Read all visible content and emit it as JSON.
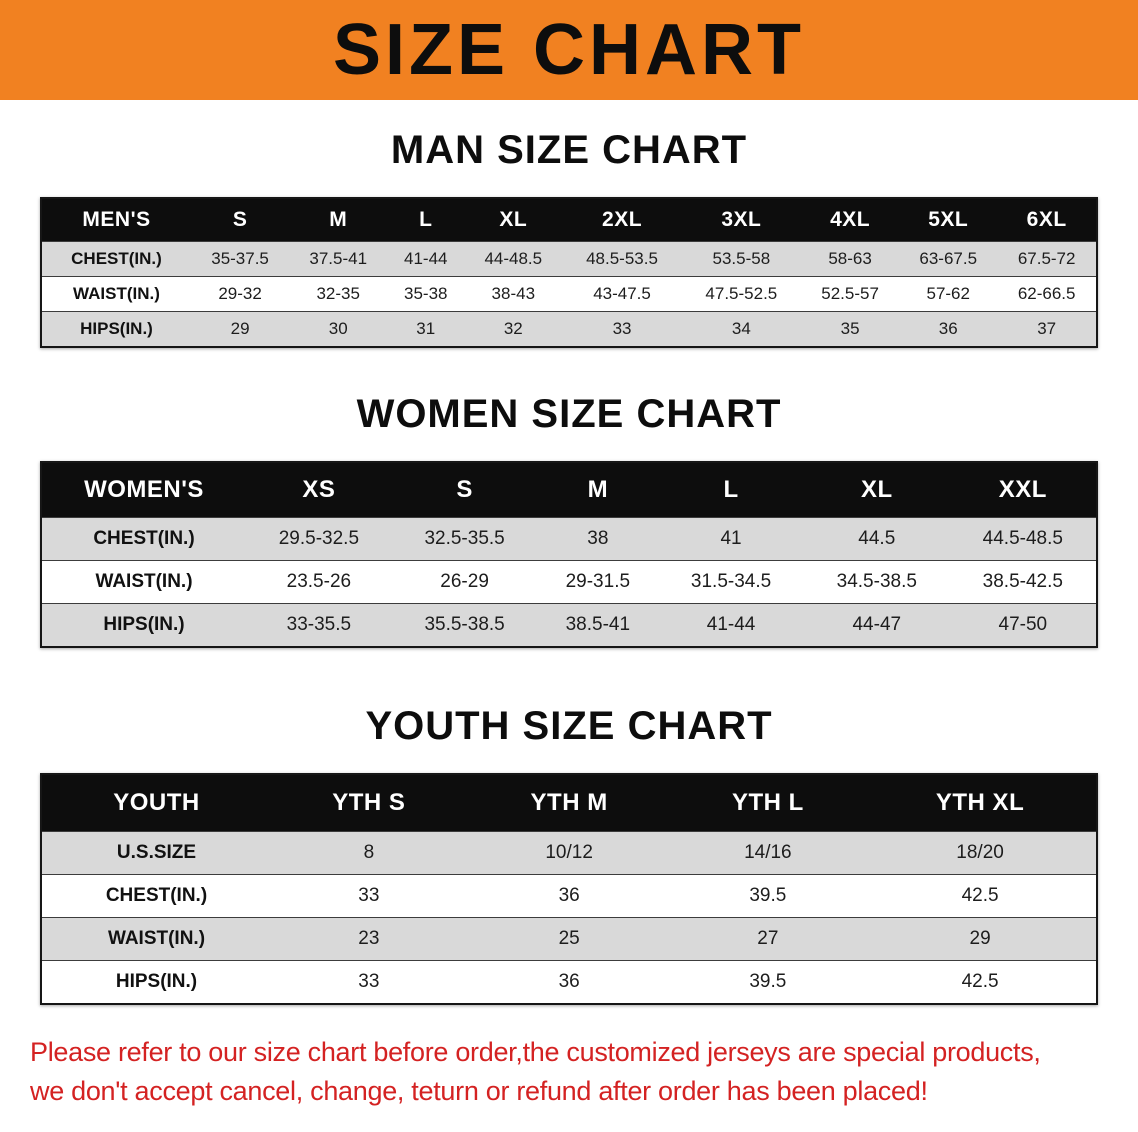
{
  "banner": {
    "title": "SIZE CHART"
  },
  "colors": {
    "banner_bg": "#F18121",
    "header_row_bg": "#0D0D0D",
    "stripe_gray": "#D9D9D9",
    "disclaimer_red": "#D42222"
  },
  "sections": [
    {
      "id": "men",
      "heading": "MAN SIZE CHART",
      "table": {
        "header": [
          "MEN'S",
          "S",
          "M",
          "L",
          "XL",
          "2XL",
          "3XL",
          "4XL",
          "5XL",
          "6XL"
        ],
        "rows": [
          [
            "CHEST(IN.)",
            "35-37.5",
            "37.5-41",
            "41-44",
            "44-48.5",
            "48.5-53.5",
            "53.5-58",
            "58-63",
            "63-67.5",
            "67.5-72"
          ],
          [
            "WAIST(IN.)",
            "29-32",
            "32-35",
            "35-38",
            "38-43",
            "43-47.5",
            "47.5-52.5",
            "52.5-57",
            "57-62",
            "62-66.5"
          ],
          [
            "HIPS(IN.)",
            "29",
            "30",
            "31",
            "32",
            "33",
            "34",
            "35",
            "36",
            "37"
          ]
        ]
      }
    },
    {
      "id": "women",
      "heading": "WOMEN SIZE CHART",
      "table": {
        "header": [
          "WOMEN'S",
          "XS",
          "S",
          "M",
          "L",
          "XL",
          "XXL"
        ],
        "rows": [
          [
            "CHEST(IN.)",
            "29.5-32.5",
            "32.5-35.5",
            "38",
            "41",
            "44.5",
            "44.5-48.5"
          ],
          [
            "WAIST(IN.)",
            "23.5-26",
            "26-29",
            "29-31.5",
            "31.5-34.5",
            "34.5-38.5",
            "38.5-42.5"
          ],
          [
            "HIPS(IN.)",
            "33-35.5",
            "35.5-38.5",
            "38.5-41",
            "41-44",
            "44-47",
            "47-50"
          ]
        ]
      }
    },
    {
      "id": "youth",
      "heading": "YOUTH SIZE CHART",
      "table": {
        "header": [
          "YOUTH",
          "YTH S",
          "YTH M",
          "YTH L",
          "YTH XL"
        ],
        "rows": [
          [
            "U.S.SIZE",
            "8",
            "10/12",
            "14/16",
            "18/20"
          ],
          [
            "CHEST(IN.)",
            "33",
            "36",
            "39.5",
            "42.5"
          ],
          [
            "WAIST(IN.)",
            "23",
            "25",
            "27",
            "29"
          ],
          [
            "HIPS(IN.)",
            "33",
            "36",
            "39.5",
            "42.5"
          ]
        ]
      }
    }
  ],
  "disclaimer": {
    "lines": [
      "Please refer to our size chart before order,the customized jerseys are special products,",
      "we don't accept cancel, change, teturn or refund after order has been placed!"
    ]
  }
}
